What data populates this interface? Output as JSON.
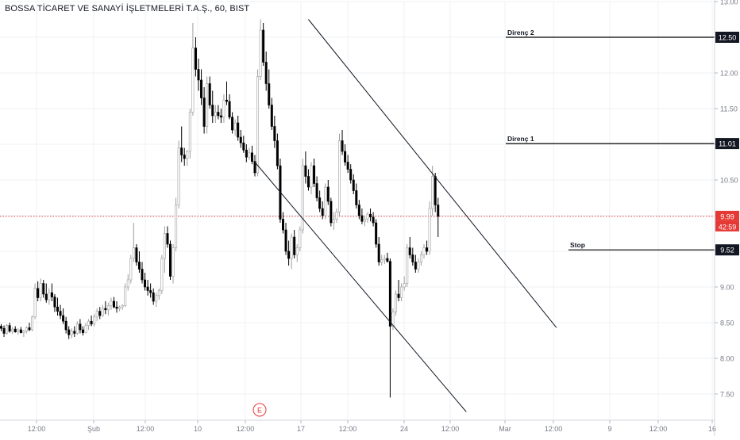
{
  "header": {
    "title": "BOSSA TİCARET VE SANAYİ İŞLETMELERİ T.A.Ş., 60, BIST"
  },
  "colors": {
    "candle": "#000000",
    "grid": "#eef0f3",
    "price_line": "#e53935",
    "price_badge": "#e53935",
    "level_badge": "#131722",
    "earnings": "#e53935",
    "axis_text": "#787b86"
  },
  "chart_data": {
    "type": "candlestick",
    "symbol": "BOSSA TİCARET VE SANAYİ İŞLETMELERİ T.A.Ş.",
    "interval": "60",
    "exchange": "BIST",
    "y_ticks": [
      "13.00",
      "12.50",
      "12.00",
      "11.50",
      "11.00",
      "10.50",
      "10.00",
      "9.50",
      "9.00",
      "8.50",
      "8.00",
      "7.50"
    ],
    "ylim": [
      7.3,
      13.0
    ],
    "x_ticks": [
      "12:00",
      "Şub",
      "12:00",
      "10",
      "12:00",
      "17",
      "12:00",
      "24",
      "12:00",
      "Mar",
      "12:00",
      "9",
      "12:00",
      "16"
    ],
    "levels": [
      {
        "name": "Direnç 2",
        "value": 12.5,
        "badge": "12.50"
      },
      {
        "name": "Direnç 1",
        "value": 11.01,
        "badge": "11.01"
      },
      {
        "name": "Stop",
        "value": 9.52,
        "badge": "9.52"
      }
    ],
    "current_price": {
      "value": 9.99,
      "label": "9.99",
      "countdown": "42:59"
    },
    "earnings_marker": "E",
    "channel_lines": [
      {
        "name": "upper",
        "from": {
          "bar": 109,
          "price": 12.75
        },
        "to": {
          "bar": 197,
          "price": 8.43
        }
      },
      {
        "name": "lower",
        "from": {
          "bar": 90,
          "price": 10.75
        },
        "to": {
          "bar": 165,
          "price": 7.25
        }
      }
    ],
    "candles": [
      [
        8.45,
        8.48,
        8.38,
        8.42
      ],
      [
        8.42,
        8.46,
        8.3,
        8.35
      ],
      [
        8.35,
        8.48,
        8.33,
        8.46
      ],
      [
        8.46,
        8.5,
        8.36,
        8.38
      ],
      [
        8.38,
        8.44,
        8.34,
        8.41
      ],
      [
        8.41,
        8.45,
        8.36,
        8.37
      ],
      [
        8.37,
        8.42,
        8.33,
        8.4
      ],
      [
        8.4,
        8.44,
        8.35,
        8.36
      ],
      [
        8.36,
        8.4,
        8.3,
        8.38
      ],
      [
        8.38,
        8.45,
        8.35,
        8.43
      ],
      [
        8.43,
        8.5,
        8.38,
        8.4
      ],
      [
        8.4,
        8.6,
        8.38,
        8.58
      ],
      [
        8.58,
        9.05,
        8.55,
        8.98
      ],
      [
        8.98,
        9.08,
        8.8,
        8.85
      ],
      [
        8.85,
        9.12,
        8.8,
        9.05
      ],
      [
        9.05,
        9.1,
        8.85,
        8.9
      ],
      [
        8.9,
        9.05,
        8.78,
        8.82
      ],
      [
        8.82,
        8.98,
        8.75,
        8.92
      ],
      [
        8.92,
        9.05,
        8.8,
        8.86
      ],
      [
        8.86,
        8.9,
        8.65,
        8.72
      ],
      [
        8.72,
        8.85,
        8.6,
        8.66
      ],
      [
        8.66,
        8.75,
        8.55,
        8.6
      ],
      [
        8.6,
        8.7,
        8.48,
        8.52
      ],
      [
        8.52,
        8.58,
        8.35,
        8.4
      ],
      [
        8.4,
        8.45,
        8.27,
        8.33
      ],
      [
        8.33,
        8.42,
        8.28,
        8.38
      ],
      [
        8.38,
        8.45,
        8.3,
        8.35
      ],
      [
        8.35,
        8.52,
        8.33,
        8.48
      ],
      [
        8.48,
        8.55,
        8.35,
        8.4
      ],
      [
        8.4,
        8.45,
        8.32,
        8.36
      ],
      [
        8.36,
        8.5,
        8.35,
        8.46
      ],
      [
        8.46,
        8.55,
        8.4,
        8.52
      ],
      [
        8.52,
        8.6,
        8.45,
        8.48
      ],
      [
        8.48,
        8.62,
        8.45,
        8.58
      ],
      [
        8.58,
        8.7,
        8.52,
        8.66
      ],
      [
        8.66,
        8.72,
        8.55,
        8.6
      ],
      [
        8.6,
        8.75,
        8.58,
        8.7
      ],
      [
        8.7,
        8.8,
        8.62,
        8.68
      ],
      [
        8.68,
        8.78,
        8.6,
        8.74
      ],
      [
        8.74,
        8.85,
        8.68,
        8.8
      ],
      [
        8.8,
        8.86,
        8.7,
        8.72
      ],
      [
        8.72,
        8.8,
        8.64,
        8.7
      ],
      [
        8.7,
        8.74,
        8.66,
        8.72
      ],
      [
        8.72,
        8.76,
        8.68,
        8.74
      ],
      [
        8.74,
        9.05,
        8.72,
        9.0
      ],
      [
        9.0,
        9.18,
        8.95,
        9.1
      ],
      [
        9.1,
        9.45,
        9.05,
        9.4
      ],
      [
        9.4,
        9.9,
        9.35,
        9.55
      ],
      [
        9.55,
        9.6,
        9.3,
        9.35
      ],
      [
        9.35,
        9.5,
        9.2,
        9.25
      ],
      [
        9.25,
        9.35,
        9.05,
        9.1
      ],
      [
        9.1,
        9.2,
        8.95,
        9.0
      ],
      [
        9.0,
        9.1,
        8.88,
        8.95
      ],
      [
        8.95,
        9.05,
        8.85,
        8.92
      ],
      [
        8.92,
        8.98,
        8.75,
        8.8
      ],
      [
        8.8,
        8.92,
        8.72,
        8.88
      ],
      [
        8.88,
        8.98,
        8.82,
        8.95
      ],
      [
        8.95,
        9.45,
        8.9,
        9.4
      ],
      [
        9.4,
        9.85,
        9.2,
        9.75
      ],
      [
        9.75,
        9.85,
        9.55,
        9.6
      ],
      [
        9.6,
        9.65,
        9.1,
        9.15
      ],
      [
        9.15,
        9.6,
        9.05,
        9.55
      ],
      [
        9.55,
        10.25,
        9.5,
        10.15
      ],
      [
        10.15,
        11.05,
        10.1,
        10.95
      ],
      [
        10.95,
        11.25,
        10.75,
        10.85
      ],
      [
        10.85,
        10.95,
        10.7,
        10.8
      ],
      [
        10.8,
        10.92,
        10.7,
        10.9
      ],
      [
        10.9,
        11.5,
        10.8,
        11.45
      ],
      [
        11.45,
        12.7,
        11.4,
        12.35
      ],
      [
        12.35,
        12.5,
        11.95,
        12.05
      ],
      [
        12.05,
        12.2,
        11.75,
        11.9
      ],
      [
        11.9,
        12.05,
        11.55,
        11.65
      ],
      [
        11.65,
        11.8,
        11.15,
        11.25
      ],
      [
        11.25,
        11.95,
        11.15,
        11.85
      ],
      [
        11.85,
        11.95,
        11.5,
        11.55
      ],
      [
        11.55,
        11.75,
        11.3,
        11.4
      ],
      [
        11.4,
        11.55,
        11.3,
        11.45
      ],
      [
        11.45,
        11.55,
        11.35,
        11.4
      ],
      [
        11.4,
        11.5,
        11.3,
        11.38
      ],
      [
        11.38,
        11.7,
        11.3,
        11.62
      ],
      [
        11.62,
        11.88,
        11.55,
        11.6
      ],
      [
        11.6,
        11.7,
        11.35,
        11.38
      ],
      [
        11.38,
        11.45,
        11.15,
        11.2
      ],
      [
        11.2,
        11.35,
        11.12,
        11.3
      ],
      [
        11.3,
        11.4,
        11.05,
        11.1
      ],
      [
        11.1,
        11.2,
        10.95,
        11.02
      ],
      [
        11.02,
        11.12,
        10.88,
        10.92
      ],
      [
        10.92,
        11.0,
        10.75,
        10.82
      ],
      [
        10.82,
        10.95,
        10.78,
        10.88
      ],
      [
        10.88,
        10.98,
        10.72,
        10.76
      ],
      [
        10.76,
        10.85,
        10.55,
        10.6
      ],
      [
        10.6,
        12.05,
        10.55,
        11.95
      ],
      [
        11.95,
        12.75,
        11.9,
        12.6
      ],
      [
        12.6,
        12.7,
        12.1,
        12.15
      ],
      [
        12.15,
        12.3,
        11.75,
        11.85
      ],
      [
        11.85,
        12.05,
        11.5,
        11.55
      ],
      [
        11.55,
        11.65,
        11.2,
        11.25
      ],
      [
        11.25,
        11.4,
        10.95,
        11.05
      ],
      [
        11.05,
        11.15,
        10.65,
        10.7
      ],
      [
        10.7,
        10.8,
        9.9,
        9.95
      ],
      [
        9.95,
        10.05,
        9.75,
        9.8
      ],
      [
        9.8,
        9.9,
        9.45,
        9.5
      ],
      [
        9.5,
        9.65,
        9.3,
        9.4
      ],
      [
        9.4,
        9.75,
        9.25,
        9.7
      ],
      [
        9.7,
        9.8,
        9.4,
        9.45
      ],
      [
        9.45,
        9.6,
        9.35,
        9.55
      ],
      [
        9.55,
        9.85,
        9.5,
        9.8
      ],
      [
        9.8,
        10.8,
        9.75,
        10.7
      ],
      [
        10.7,
        10.9,
        10.45,
        10.55
      ],
      [
        10.55,
        10.65,
        10.35,
        10.4
      ],
      [
        10.4,
        10.75,
        10.3,
        10.7
      ],
      [
        10.7,
        10.8,
        10.4,
        10.45
      ],
      [
        10.45,
        10.55,
        10.2,
        10.25
      ],
      [
        10.25,
        10.35,
        10.05,
        10.1
      ],
      [
        10.1,
        10.2,
        9.95,
        10.0
      ],
      [
        10.0,
        10.45,
        9.95,
        10.4
      ],
      [
        10.4,
        10.5,
        10.15,
        10.2
      ],
      [
        10.2,
        10.25,
        9.85,
        9.9
      ],
      [
        9.9,
        10.05,
        9.8,
        9.95
      ],
      [
        9.95,
        10.1,
        9.9,
        10.05
      ]
    ],
    "candles_part2": [
      [
        10.05,
        11.15,
        10.0,
        11.05
      ],
      [
        11.05,
        11.2,
        10.85,
        10.9
      ],
      [
        10.9,
        11.0,
        10.7,
        10.75
      ],
      [
        10.75,
        10.85,
        10.6,
        10.65
      ],
      [
        10.65,
        10.72,
        10.45,
        10.5
      ],
      [
        10.5,
        10.58,
        10.3,
        10.35
      ],
      [
        10.35,
        10.45,
        10.1,
        10.15
      ],
      [
        10.15,
        10.22,
        9.95,
        10.0
      ],
      [
        10.0,
        10.1,
        9.88,
        9.92
      ],
      [
        9.92,
        10.0,
        9.85,
        9.95
      ],
      [
        9.95,
        10.05,
        9.9,
        10.02
      ],
      [
        10.02,
        10.1,
        9.92,
        9.98
      ],
      [
        9.98,
        10.05,
        9.85,
        9.9
      ],
      [
        9.9,
        9.95,
        9.55,
        9.6
      ],
      [
        9.6,
        9.7,
        9.3,
        9.35
      ],
      [
        9.35,
        9.45,
        9.3,
        9.38
      ],
      [
        9.38,
        9.45,
        9.32,
        9.4
      ],
      [
        9.4,
        9.48,
        9.34,
        9.36
      ],
      [
        9.36,
        9.4,
        7.45,
        8.45
      ],
      [
        8.45,
        8.7,
        8.4,
        8.65
      ],
      [
        8.65,
        8.95,
        8.6,
        8.9
      ],
      [
        8.9,
        9.1,
        8.8,
        8.85
      ],
      [
        8.85,
        9.05,
        8.8,
        9.0
      ],
      [
        9.0,
        9.15,
        8.95,
        9.05
      ],
      [
        9.05,
        9.6,
        9.0,
        9.55
      ],
      [
        9.55,
        9.7,
        9.4,
        9.45
      ],
      [
        9.45,
        9.55,
        9.3,
        9.35
      ],
      [
        9.35,
        9.45,
        9.2,
        9.25
      ],
      [
        9.25,
        9.4,
        9.2,
        9.35
      ],
      [
        9.35,
        9.5,
        9.3,
        9.45
      ],
      [
        9.45,
        9.6,
        9.4,
        9.55
      ],
      [
        9.55,
        9.65,
        9.45,
        9.5
      ],
      [
        9.5,
        10.2,
        9.45,
        10.1
      ],
      [
        10.1,
        10.7,
        10.0,
        10.55
      ],
      [
        10.55,
        10.6,
        10.05,
        10.15
      ],
      [
        10.15,
        10.25,
        9.7,
        9.99
      ]
    ]
  }
}
